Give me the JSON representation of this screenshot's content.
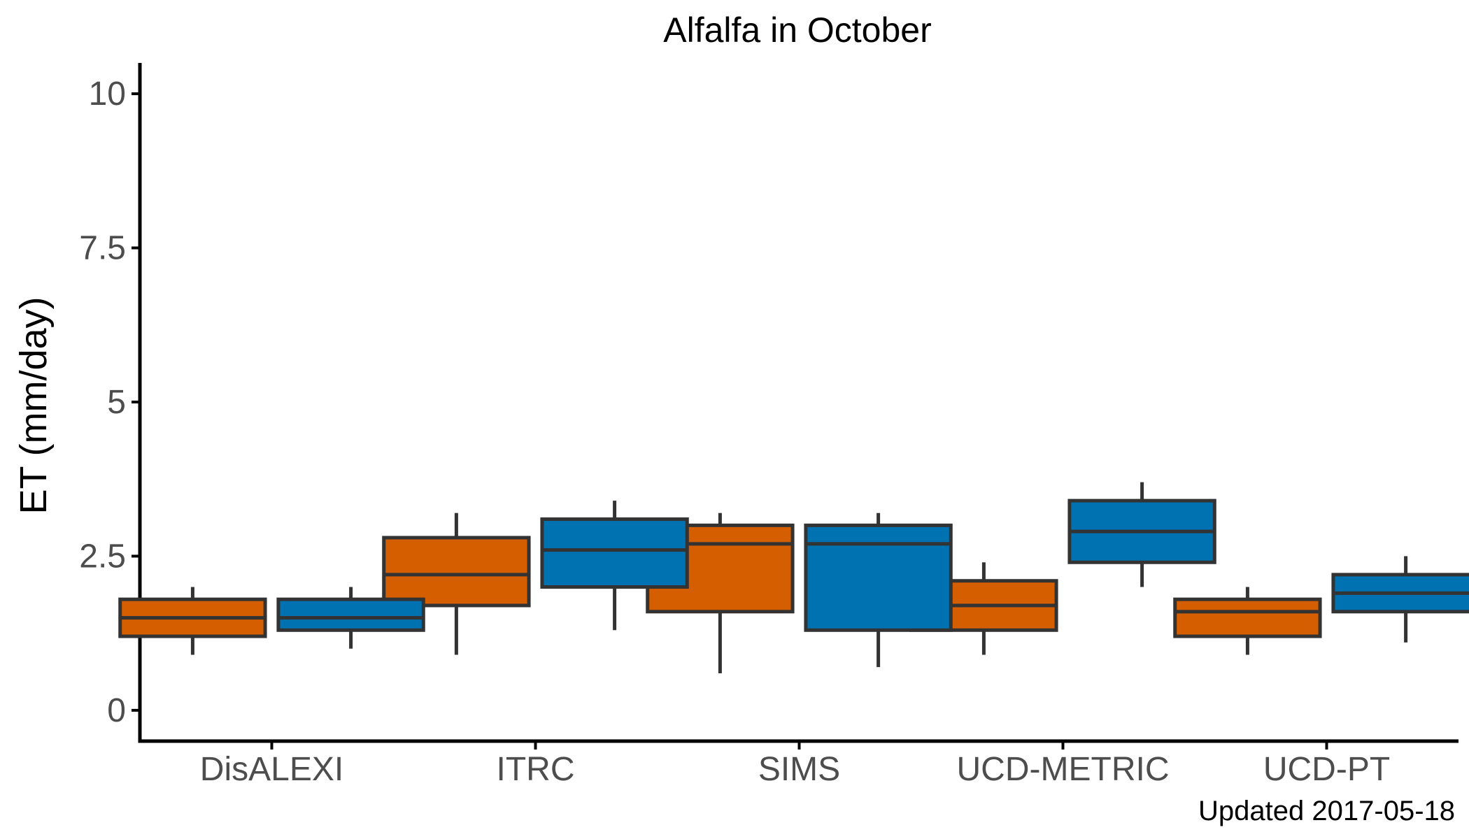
{
  "chart_data": {
    "type": "boxplot",
    "title": "Alfalfa in October",
    "xlabel": "",
    "ylabel": "ET (mm/day)",
    "caption": "Updated  2017-05-18",
    "ylim": [
      -0.5,
      10.5
    ],
    "yticks": [
      0,
      2.5,
      5,
      7.5,
      10
    ],
    "ytick_labels": [
      "0",
      "2.5",
      "5",
      "7.5",
      "10"
    ],
    "grid": false,
    "legend": "none",
    "categories": [
      "DisALEXI",
      "ITRC",
      "SIMS",
      "UCD-METRIC",
      "UCD-PT"
    ],
    "series": [
      {
        "color": "#D55E00",
        "boxes": [
          {
            "whisker_low": 0.9,
            "q1": 1.2,
            "median": 1.5,
            "q3": 1.8,
            "whisker_high": 2.0
          },
          {
            "whisker_low": 0.9,
            "q1": 1.7,
            "median": 2.2,
            "q3": 2.8,
            "whisker_high": 3.2
          },
          {
            "whisker_low": 0.6,
            "q1": 1.6,
            "median": 2.7,
            "q3": 3.0,
            "whisker_high": 3.2
          },
          {
            "whisker_low": 0.9,
            "q1": 1.3,
            "median": 1.7,
            "q3": 2.1,
            "whisker_high": 2.4
          },
          {
            "whisker_low": 0.9,
            "q1": 1.2,
            "median": 1.6,
            "q3": 1.8,
            "whisker_high": 2.0
          }
        ]
      },
      {
        "color": "#0072B2",
        "boxes": [
          {
            "whisker_low": 1.0,
            "q1": 1.3,
            "median": 1.5,
            "q3": 1.8,
            "whisker_high": 2.0
          },
          {
            "whisker_low": 1.3,
            "q1": 2.0,
            "median": 2.6,
            "q3": 3.1,
            "whisker_high": 3.4
          },
          {
            "whisker_low": 0.7,
            "q1": 1.3,
            "median": 2.7,
            "q3": 3.0,
            "whisker_high": 3.2
          },
          {
            "whisker_low": 2.0,
            "q1": 2.4,
            "median": 2.9,
            "q3": 3.4,
            "whisker_high": 3.7
          },
          {
            "whisker_low": 1.1,
            "q1": 1.6,
            "median": 1.9,
            "q3": 2.2,
            "whisker_high": 2.5
          }
        ]
      }
    ],
    "box_outline_color": "#333333",
    "axis_color": "#000000"
  }
}
